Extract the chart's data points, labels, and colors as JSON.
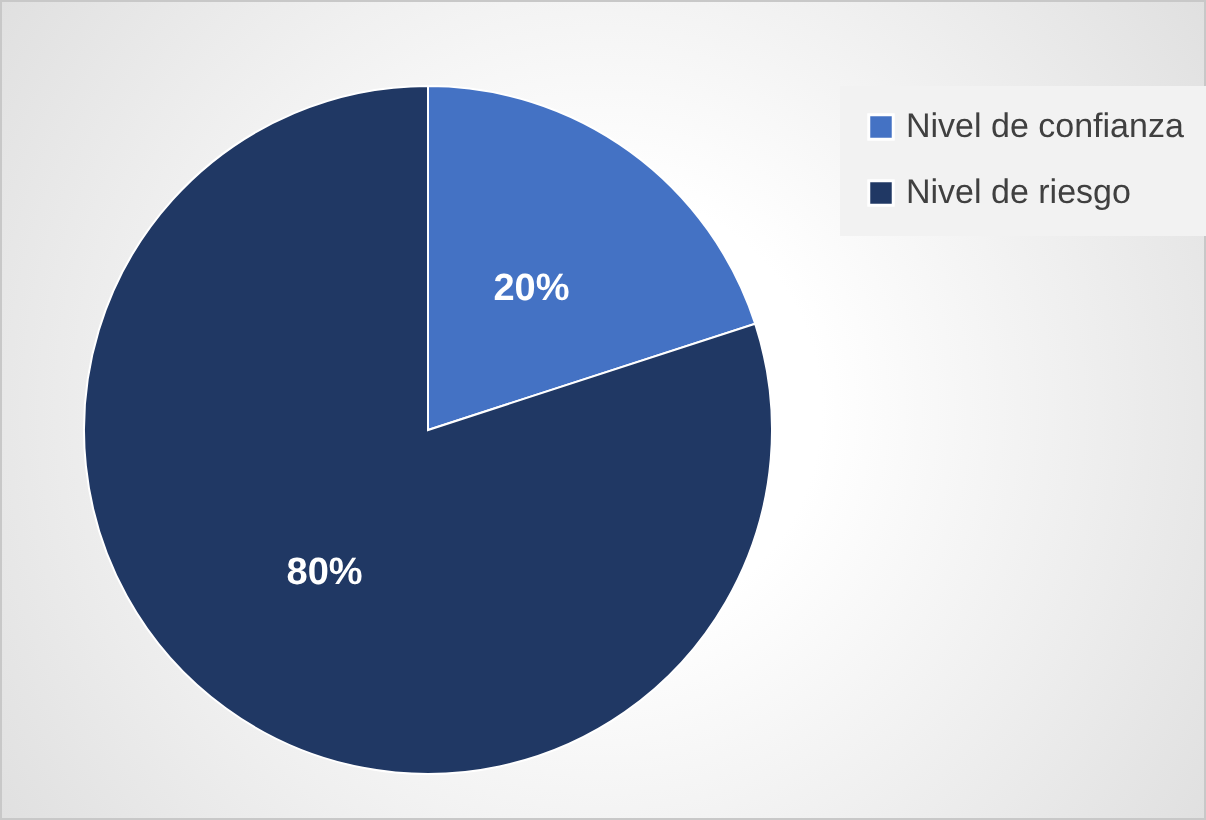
{
  "chart_data": {
    "type": "pie",
    "categories": [
      "Nivel de confianza",
      "Nivel de riesgo"
    ],
    "values": [
      20,
      80
    ],
    "colors": [
      "#4472c4",
      "#203864"
    ],
    "value_labels": [
      "20%",
      "80%"
    ],
    "legend": "right"
  }
}
